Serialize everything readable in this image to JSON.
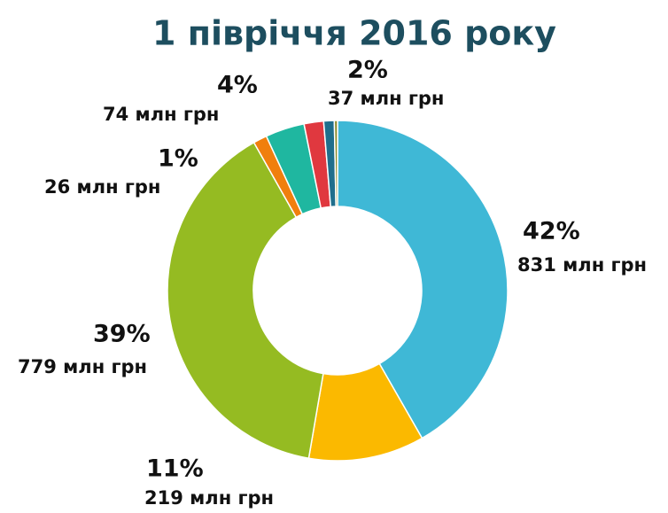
{
  "chart_data": {
    "type": "donut",
    "title": "1 півріччя 2016 року",
    "values": [
      831,
      219,
      779,
      26,
      74,
      37,
      20,
      6
    ],
    "percent_labels": [
      "42%",
      "11%",
      "39%",
      "1%",
      "4%",
      "2%",
      null,
      null
    ],
    "value_labels": [
      "831 млн грн",
      "219 млн грн",
      "779 млн грн",
      "26 млн грн",
      "74 млн грн",
      "37 млн грн",
      null,
      null
    ],
    "colors": [
      "#3fb8d6",
      "#fbb900",
      "#95bb22",
      "#f07f0d",
      "#1fb7a0",
      "#e0383f",
      "#1f6e8c",
      "#8a8a2a"
    ]
  }
}
